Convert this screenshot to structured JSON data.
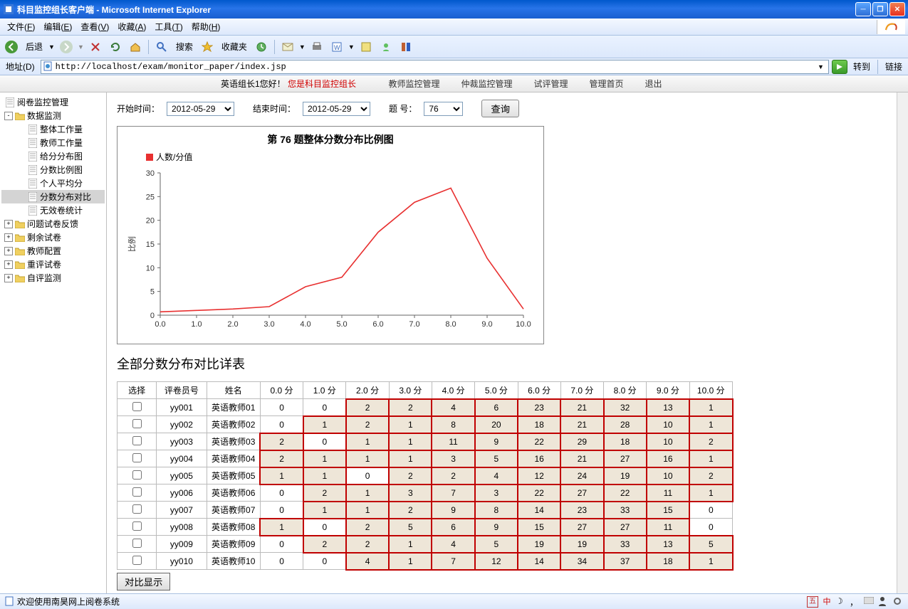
{
  "window": {
    "title": "科目监控组长客户端 - Microsoft Internet Explorer"
  },
  "menubar": {
    "items": [
      {
        "label": "文件",
        "accel": "F"
      },
      {
        "label": "编辑",
        "accel": "E"
      },
      {
        "label": "查看",
        "accel": "V"
      },
      {
        "label": "收藏",
        "accel": "A"
      },
      {
        "label": "工具",
        "accel": "T"
      },
      {
        "label": "帮助",
        "accel": "H"
      }
    ]
  },
  "toolbar": {
    "back": "后退",
    "search": "搜索",
    "fav": "收藏夹"
  },
  "addressbar": {
    "label": "地址(D)",
    "url": "http://localhost/exam/monitor_paper/index.jsp",
    "go": "转到",
    "links": "链接"
  },
  "topnav": {
    "welcome_prefix": "英语组长1您好！",
    "welcome_role": "您是科目监控组长",
    "items": [
      "教师监控管理",
      "仲裁监控管理",
      "试评管理",
      "管理首页",
      "退出"
    ]
  },
  "sidebar": {
    "nodes": [
      {
        "depth": 0,
        "exp": "",
        "icon": "page",
        "label": "阅卷监控管理"
      },
      {
        "depth": 0,
        "exp": "-",
        "icon": "folder-open",
        "label": "数据监测"
      },
      {
        "depth": 1,
        "exp": "",
        "icon": "page",
        "label": "整体工作量"
      },
      {
        "depth": 1,
        "exp": "",
        "icon": "page",
        "label": "教师工作量"
      },
      {
        "depth": 1,
        "exp": "",
        "icon": "page",
        "label": "给分分布图"
      },
      {
        "depth": 1,
        "exp": "",
        "icon": "page",
        "label": "分数比例图"
      },
      {
        "depth": 1,
        "exp": "",
        "icon": "page",
        "label": "个人平均分"
      },
      {
        "depth": 1,
        "exp": "",
        "icon": "page",
        "label": "分数分布对比",
        "sel": true
      },
      {
        "depth": 1,
        "exp": "",
        "icon": "page",
        "label": "无效卷统计"
      },
      {
        "depth": 0,
        "exp": "+",
        "icon": "folder",
        "label": "问题试卷反馈"
      },
      {
        "depth": 0,
        "exp": "+",
        "icon": "folder",
        "label": "剩余试卷"
      },
      {
        "depth": 0,
        "exp": "+",
        "icon": "folder",
        "label": "教师配置"
      },
      {
        "depth": 0,
        "exp": "+",
        "icon": "folder",
        "label": "重评试卷"
      },
      {
        "depth": 0,
        "exp": "+",
        "icon": "folder",
        "label": "自评监测"
      }
    ]
  },
  "filters": {
    "start_label": "开始时间：",
    "start_value": "2012-05-29",
    "end_label": "结束时间：",
    "end_value": "2012-05-29",
    "qno_label": "题  号：",
    "qno_value": "76",
    "query_btn": "查询"
  },
  "chart": {
    "title": "第  76  题整体分数分布比例图",
    "legend": "人数/分值",
    "ylabel": "比例",
    "ylim": [
      0,
      30
    ],
    "ytick_step": 5,
    "xlim": [
      0,
      10
    ],
    "xtick_step": 1,
    "xtick_labels": [
      "0.0",
      "1.0",
      "2.0",
      "3.0",
      "4.0",
      "5.0",
      "6.0",
      "7.0",
      "8.0",
      "9.0",
      "10.0"
    ],
    "line_color": "#e83030",
    "bg_color": "#ffffff",
    "axis_color": "#666666",
    "points": [
      {
        "x": 0.0,
        "y": 0.7
      },
      {
        "x": 1.0,
        "y": 1.0
      },
      {
        "x": 2.0,
        "y": 1.3
      },
      {
        "x": 3.0,
        "y": 1.8
      },
      {
        "x": 4.0,
        "y": 6.0
      },
      {
        "x": 5.0,
        "y": 8.0
      },
      {
        "x": 6.0,
        "y": 17.5
      },
      {
        "x": 7.0,
        "y": 23.8
      },
      {
        "x": 8.0,
        "y": 26.8
      },
      {
        "x": 9.0,
        "y": 12.0
      },
      {
        "x": 10.0,
        "y": 1.3
      }
    ]
  },
  "table": {
    "title": "全部分数分布对比详表",
    "headers": [
      "选择",
      "评卷员号",
      "姓名",
      "0.0 分",
      "1.0 分",
      "2.0 分",
      "3.0 分",
      "4.0 分",
      "5.0 分",
      "6.0 分",
      "7.0 分",
      "8.0 分",
      "9.0 分",
      "10.0 分"
    ],
    "hl_bg": "#eee6d8",
    "hl_border": "#c00000",
    "rows": [
      {
        "id": "yy001",
        "name": "英语教师01",
        "cells": [
          {
            "v": 0
          },
          {
            "v": 0
          },
          {
            "v": 2,
            "h": 1
          },
          {
            "v": 2,
            "h": 1
          },
          {
            "v": 4,
            "h": 1
          },
          {
            "v": 6,
            "h": 1
          },
          {
            "v": 23,
            "h": 1
          },
          {
            "v": 21,
            "h": 1
          },
          {
            "v": 32,
            "h": 1
          },
          {
            "v": 13,
            "h": 1
          },
          {
            "v": 1,
            "h": 1
          }
        ]
      },
      {
        "id": "yy002",
        "name": "英语教师02",
        "cells": [
          {
            "v": 0
          },
          {
            "v": 1,
            "h": 1
          },
          {
            "v": 2,
            "h": 1
          },
          {
            "v": 1,
            "h": 1
          },
          {
            "v": 8,
            "h": 1
          },
          {
            "v": 20,
            "h": 1
          },
          {
            "v": 18,
            "h": 1
          },
          {
            "v": 21,
            "h": 1
          },
          {
            "v": 28,
            "h": 1
          },
          {
            "v": 10,
            "h": 1
          },
          {
            "v": 1,
            "h": 1
          }
        ]
      },
      {
        "id": "yy003",
        "name": "英语教师03",
        "cells": [
          {
            "v": 2,
            "h": 1
          },
          {
            "v": 0
          },
          {
            "v": 1,
            "h": 1
          },
          {
            "v": 1,
            "h": 1
          },
          {
            "v": 11,
            "h": 1
          },
          {
            "v": 9,
            "h": 1
          },
          {
            "v": 22,
            "h": 1
          },
          {
            "v": 29,
            "h": 1
          },
          {
            "v": 18,
            "h": 1
          },
          {
            "v": 10,
            "h": 1
          },
          {
            "v": 2,
            "h": 1
          }
        ]
      },
      {
        "id": "yy004",
        "name": "英语教师04",
        "cells": [
          {
            "v": 2,
            "h": 1
          },
          {
            "v": 1,
            "h": 1
          },
          {
            "v": 1,
            "h": 1
          },
          {
            "v": 1,
            "h": 1
          },
          {
            "v": 3,
            "h": 1
          },
          {
            "v": 5,
            "h": 1
          },
          {
            "v": 16,
            "h": 1
          },
          {
            "v": 21,
            "h": 1
          },
          {
            "v": 27,
            "h": 1
          },
          {
            "v": 16,
            "h": 1
          },
          {
            "v": 1,
            "h": 1
          }
        ]
      },
      {
        "id": "yy005",
        "name": "英语教师05",
        "cells": [
          {
            "v": 1,
            "h": 1
          },
          {
            "v": 1,
            "h": 1
          },
          {
            "v": 0
          },
          {
            "v": 2,
            "h": 1
          },
          {
            "v": 2,
            "h": 1
          },
          {
            "v": 4,
            "h": 1
          },
          {
            "v": 12,
            "h": 1
          },
          {
            "v": 24,
            "h": 1
          },
          {
            "v": 19,
            "h": 1
          },
          {
            "v": 10,
            "h": 1
          },
          {
            "v": 2,
            "h": 1
          }
        ]
      },
      {
        "id": "yy006",
        "name": "英语教师06",
        "cells": [
          {
            "v": 0
          },
          {
            "v": 2,
            "h": 1
          },
          {
            "v": 1,
            "h": 1
          },
          {
            "v": 3,
            "h": 1
          },
          {
            "v": 7,
            "h": 1
          },
          {
            "v": 3,
            "h": 1
          },
          {
            "v": 22,
            "h": 1
          },
          {
            "v": 27,
            "h": 1
          },
          {
            "v": 22,
            "h": 1
          },
          {
            "v": 11,
            "h": 1
          },
          {
            "v": 1,
            "h": 1
          }
        ]
      },
      {
        "id": "yy007",
        "name": "英语教师07",
        "cells": [
          {
            "v": 0
          },
          {
            "v": 1,
            "h": 1
          },
          {
            "v": 1,
            "h": 1
          },
          {
            "v": 2,
            "h": 1
          },
          {
            "v": 9,
            "h": 1
          },
          {
            "v": 8,
            "h": 1
          },
          {
            "v": 14,
            "h": 1
          },
          {
            "v": 23,
            "h": 1
          },
          {
            "v": 33,
            "h": 1
          },
          {
            "v": 15,
            "h": 1
          },
          {
            "v": 0
          }
        ]
      },
      {
        "id": "yy008",
        "name": "英语教师08",
        "cells": [
          {
            "v": 1,
            "h": 1
          },
          {
            "v": 0
          },
          {
            "v": 2,
            "h": 1
          },
          {
            "v": 5,
            "h": 1
          },
          {
            "v": 6,
            "h": 1
          },
          {
            "v": 9,
            "h": 1
          },
          {
            "v": 15,
            "h": 1
          },
          {
            "v": 27,
            "h": 1
          },
          {
            "v": 27,
            "h": 1
          },
          {
            "v": 11,
            "h": 1
          },
          {
            "v": 0
          }
        ]
      },
      {
        "id": "yy009",
        "name": "英语教师09",
        "cells": [
          {
            "v": 0
          },
          {
            "v": 2,
            "h": 1
          },
          {
            "v": 2,
            "h": 1
          },
          {
            "v": 1,
            "h": 1
          },
          {
            "v": 4,
            "h": 1
          },
          {
            "v": 5,
            "h": 1
          },
          {
            "v": 19,
            "h": 1
          },
          {
            "v": 19,
            "h": 1
          },
          {
            "v": 33,
            "h": 1
          },
          {
            "v": 13,
            "h": 1
          },
          {
            "v": 5,
            "h": 1
          }
        ]
      },
      {
        "id": "yy010",
        "name": "英语教师10",
        "cells": [
          {
            "v": 0
          },
          {
            "v": 0
          },
          {
            "v": 4,
            "h": 1
          },
          {
            "v": 1,
            "h": 1
          },
          {
            "v": 7,
            "h": 1
          },
          {
            "v": 12,
            "h": 1
          },
          {
            "v": 14,
            "h": 1
          },
          {
            "v": 34,
            "h": 1
          },
          {
            "v": 37,
            "h": 1
          },
          {
            "v": 18,
            "h": 1
          },
          {
            "v": 1,
            "h": 1
          }
        ]
      }
    ],
    "compare_btn": "对比显示"
  },
  "statusbar": {
    "text": "欢迎使用南昊网上阅卷系统",
    "ime": "中"
  }
}
